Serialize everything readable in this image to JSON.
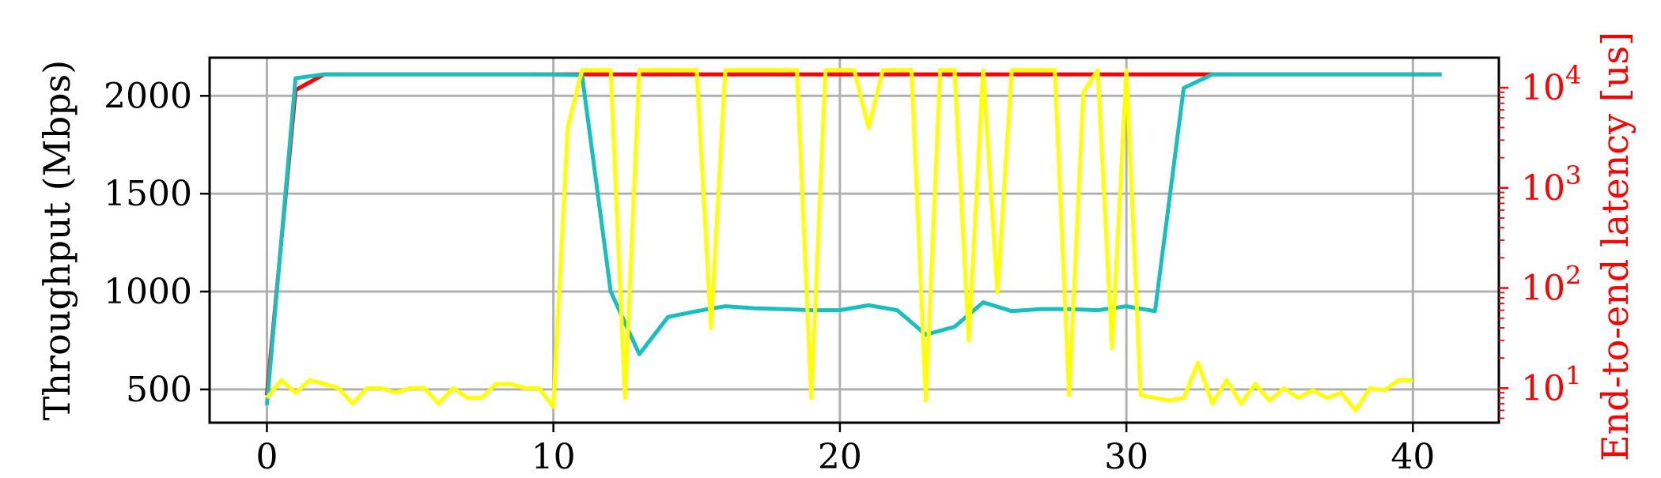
{
  "chart_data": {
    "type": "line",
    "xlabel": "",
    "ylabel": "Throughput (Mbps)",
    "y2label": "End-to-end latency [us]",
    "xlim": [
      -2,
      43
    ],
    "ylim": [
      330,
      2195
    ],
    "y2lim_log10": [
      0.655,
      4.3
    ],
    "y2scale": "log",
    "xticks": [
      0,
      10,
      20,
      30,
      40
    ],
    "yticks": [
      500,
      1000,
      1500,
      2000
    ],
    "y2ticks": [
      {
        "value": 10,
        "base": "10",
        "exp": "1"
      },
      {
        "value": 100,
        "base": "10",
        "exp": "2"
      },
      {
        "value": 1000,
        "base": "10",
        "exp": "3"
      },
      {
        "value": 10000,
        "base": "10",
        "exp": "4"
      }
    ],
    "grid": true,
    "colors": {
      "red": "#ff0000",
      "cyan": "#17bfbf",
      "yellow": "#ffff00",
      "axis_right": "#ff0000"
    },
    "series": [
      {
        "color": "#ff0000",
        "axis": "left",
        "x": [
          0,
          1,
          2,
          3,
          4,
          5,
          6,
          7,
          8,
          9,
          10,
          11,
          12,
          13,
          14,
          15,
          16,
          17,
          18,
          19,
          20,
          21,
          22,
          23,
          24,
          25,
          26,
          27,
          28,
          29,
          30,
          31,
          32,
          33,
          34,
          35,
          36,
          37,
          38,
          39,
          40,
          41
        ],
        "y": [
          470,
          2030,
          2110,
          2110,
          2110,
          2110,
          2110,
          2110,
          2110,
          2110,
          2110,
          2110,
          2110,
          2110,
          2110,
          2110,
          2110,
          2110,
          2110,
          2110,
          2110,
          2110,
          2110,
          2110,
          2110,
          2110,
          2110,
          2110,
          2110,
          2110,
          2110,
          2110,
          2110,
          2110,
          2110,
          2110,
          2110,
          2110,
          2110,
          2110,
          2110,
          2110
        ]
      },
      {
        "color": "#17bfbf",
        "axis": "left",
        "x": [
          0,
          1,
          2,
          3,
          4,
          5,
          6,
          7,
          8,
          9,
          10,
          11,
          12,
          13,
          14,
          15,
          16,
          17,
          18,
          19,
          20,
          21,
          22,
          23,
          24,
          25,
          26,
          27,
          28,
          29,
          30,
          31,
          32,
          33,
          34,
          35,
          36,
          37,
          38,
          39,
          40,
          41
        ],
        "y": [
          420,
          2090,
          2110,
          2110,
          2110,
          2110,
          2110,
          2110,
          2110,
          2110,
          2110,
          2105,
          1000,
          680,
          870,
          900,
          925,
          915,
          910,
          905,
          905,
          930,
          905,
          780,
          820,
          945,
          900,
          910,
          910,
          905,
          925,
          900,
          2040,
          2110,
          2110,
          2110,
          2110,
          2110,
          2110,
          2110,
          2110,
          2110
        ]
      },
      {
        "color": "#ffff00",
        "axis": "right",
        "x": [
          0,
          0.5,
          1,
          1.5,
          2,
          2.5,
          3,
          3.5,
          4,
          4.5,
          5,
          5.5,
          6,
          6.5,
          7,
          7.5,
          8,
          8.5,
          9,
          9.5,
          10,
          10.5,
          11,
          11.5,
          12,
          12.5,
          13,
          13.5,
          14,
          14.5,
          15,
          15.5,
          16,
          16.5,
          17,
          17.5,
          18,
          18.5,
          19,
          19.5,
          20,
          20.5,
          21,
          21.5,
          22,
          22.5,
          23,
          23.5,
          24,
          24.5,
          25,
          25.5,
          26,
          26.5,
          27,
          27.5,
          28,
          28.5,
          29,
          29.5,
          30,
          30.5,
          31,
          31.5,
          32,
          32.5,
          33,
          33.5,
          34,
          34.5,
          35,
          35.5,
          36,
          36.5,
          37,
          37.5,
          38,
          38.5,
          39,
          39.5,
          40
        ],
        "y": [
          8,
          12,
          9,
          12,
          11,
          10,
          7,
          10,
          10,
          9,
          10,
          10,
          7,
          10,
          8,
          8,
          11,
          11,
          10,
          10,
          6.5,
          4000,
          15000,
          15000,
          15000,
          8,
          15000,
          15000,
          15000,
          15000,
          15000,
          40,
          15000,
          15000,
          15000,
          15000,
          15000,
          15000,
          8,
          15000,
          15000,
          15000,
          4000,
          15000,
          15000,
          15000,
          7.5,
          15000,
          15000,
          30,
          15000,
          90,
          15000,
          15000,
          15000,
          15000,
          8.5,
          9000,
          15000,
          25,
          15000,
          8.5,
          8,
          7.5,
          8,
          18,
          7,
          12,
          7,
          11,
          7.5,
          10,
          8,
          9.5,
          8,
          9,
          6,
          10,
          9.5,
          12,
          12
        ]
      }
    ]
  }
}
